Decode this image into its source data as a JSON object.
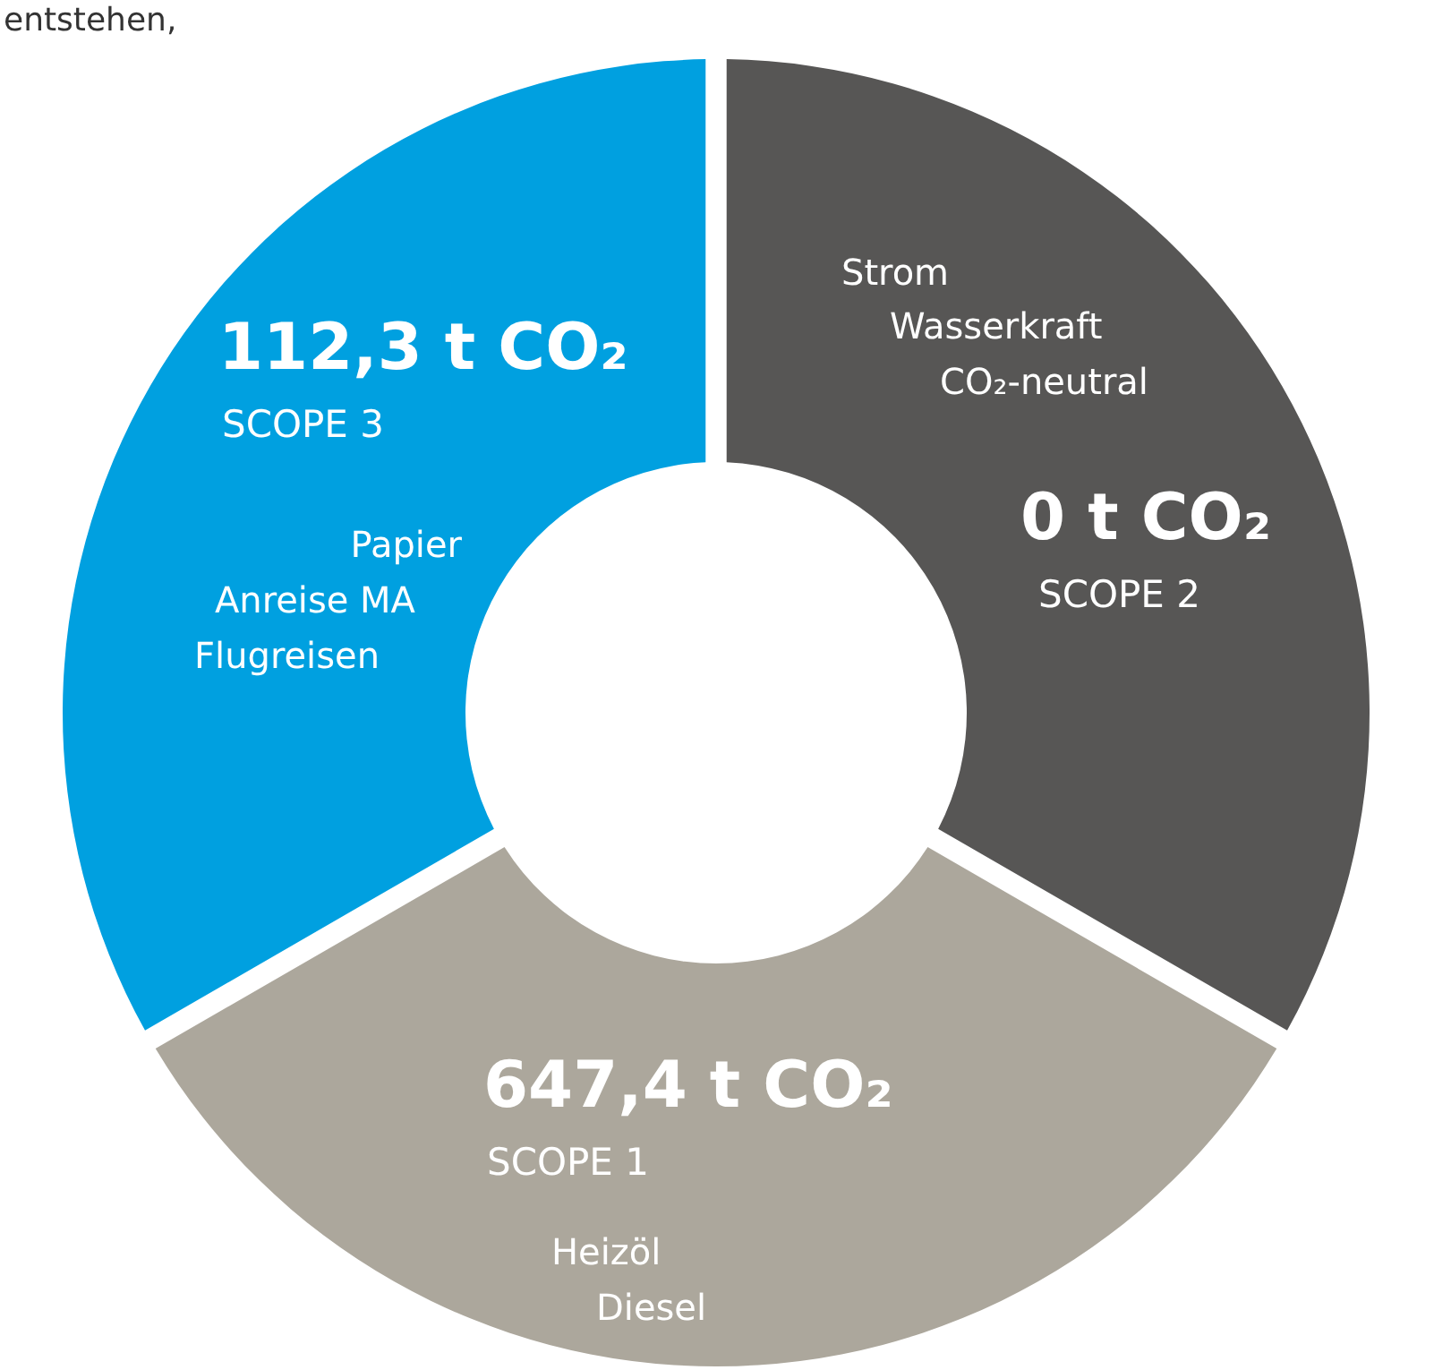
{
  "chart_data": {
    "type": "other",
    "categories": [
      "SCOPE 1",
      "SCOPE 2",
      "SCOPE 3"
    ],
    "values": [
      647.4,
      0,
      112.3
    ],
    "value_labels": [
      "647,4 t CO₂",
      "0 t CO₂",
      "112,3 t CO₂"
    ],
    "colors": [
      "#aca79c",
      "#575655",
      "#00a0e0"
    ],
    "annotations": [
      "entstehen,",
      "Strom",
      "Wasserkraft",
      "CO₂-neutral",
      "Papier",
      "Anreise MA",
      "Flugreisen",
      "Heizöl",
      "Diesel"
    ]
  }
}
